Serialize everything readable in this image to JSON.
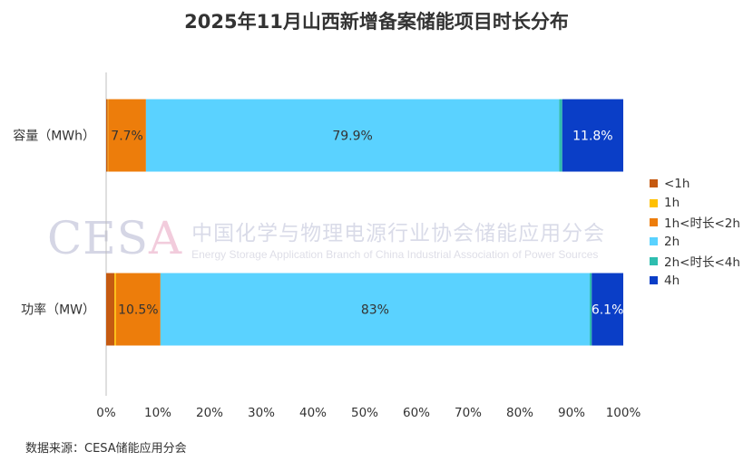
{
  "chart_data": {
    "type": "bar",
    "orientation": "horizontal",
    "stacked": "percent",
    "title": "2025年11月山西新增备案储能项目时长分布",
    "categories": [
      "容量（MWh）",
      "功率（MW）"
    ],
    "series": [
      {
        "name": "<1h",
        "color": "#c55a11",
        "values": [
          0.3,
          1.6
        ]
      },
      {
        "name": "1h",
        "color": "#ffc000",
        "values": [
          0.1,
          0.3
        ]
      },
      {
        "name": "1h<时长<2h",
        "color": "#ed7d0b",
        "values": [
          7.3,
          8.6
        ]
      },
      {
        "name": "2h",
        "color": "#5ad2ff",
        "values": [
          79.9,
          83.0
        ]
      },
      {
        "name": "2h<时长<4h",
        "color": "#2ebdaf",
        "values": [
          0.6,
          0.4
        ]
      },
      {
        "name": "4h",
        "color": "#0a3ec7",
        "values": [
          11.8,
          6.1
        ]
      }
    ],
    "data_labels": [
      [
        {
          "series": "1h<时长<2h",
          "text": "7.7%"
        },
        {
          "series": "2h",
          "text": "79.9%"
        },
        {
          "series": "4h",
          "text": "11.8%",
          "color": "#ffffff"
        }
      ],
      [
        {
          "series": "1h<时长<2h",
          "text": "10.5%"
        },
        {
          "series": "2h",
          "text": "83%"
        },
        {
          "series": "4h",
          "text": "6.1%",
          "color": "#ffffff"
        }
      ]
    ],
    "x_ticks": [
      "0%",
      "10%",
      "20%",
      "30%",
      "40%",
      "50%",
      "60%",
      "70%",
      "80%",
      "90%",
      "100%"
    ],
    "xlim": [
      0,
      100
    ],
    "grid": false,
    "legend_position": "right"
  },
  "source": "数据来源：CESA储能应用分会",
  "watermark": {
    "logo_main": "CES",
    "logo_accent": "A",
    "name_cn": "中国化学与物理电源行业协会储能应用分会",
    "name_en": "Energy Storage Application Branch of China Industrial Association of Power Sources"
  }
}
